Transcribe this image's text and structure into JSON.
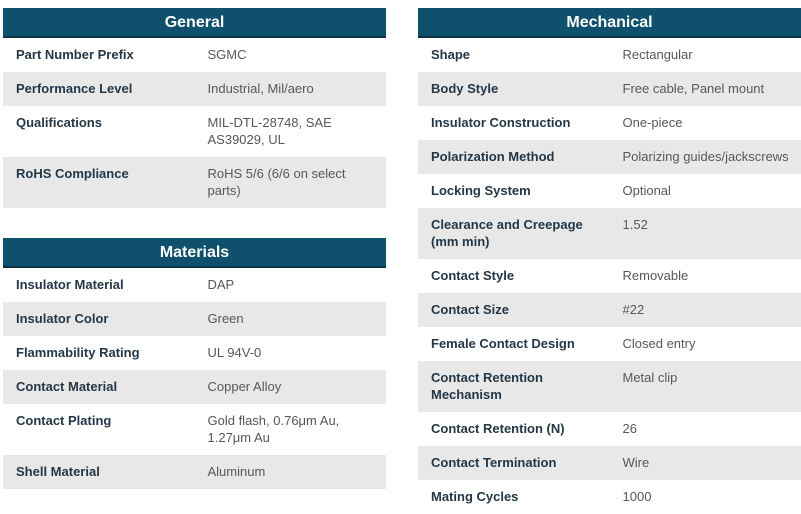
{
  "theme": {
    "header_bg": "#0f506d",
    "header_border": "#0c3144",
    "header_text": "#ffffff",
    "row_stripe": "#e8e8e8",
    "label_color": "#243746",
    "value_color": "#55585a"
  },
  "tables": [
    {
      "title": "General",
      "rows": [
        {
          "label": "Part Number Prefix",
          "value": "SGMC"
        },
        {
          "label": "Performance Level",
          "value": "Industrial, Mil/aero"
        },
        {
          "label": "Qualifications",
          "value": "MIL-DTL-28748, SAE AS39029, UL"
        },
        {
          "label": "RoHS Compliance",
          "value": "RoHS 5/6 (6/6 on select parts)"
        }
      ]
    },
    {
      "title": "Materials",
      "rows": [
        {
          "label": "Insulator Material",
          "value": "DAP"
        },
        {
          "label": "Insulator Color",
          "value": "Green"
        },
        {
          "label": "Flammability Rating",
          "value": "UL 94V-0"
        },
        {
          "label": "Contact Material",
          "value": "Copper Alloy"
        },
        {
          "label": "Contact Plating",
          "value": "Gold flash, 0.76μm Au, 1.27μm Au"
        },
        {
          "label": "Shell Material",
          "value": "Aluminum"
        }
      ]
    },
    {
      "title": "Mechanical",
      "rows": [
        {
          "label": "Shape",
          "value": "Rectangular"
        },
        {
          "label": "Body Style",
          "value": "Free cable, Panel mount"
        },
        {
          "label": "Insulator Construction",
          "value": "One-piece"
        },
        {
          "label": "Polarization Method",
          "value": "Polarizing guides/jackscrews"
        },
        {
          "label": "Locking System",
          "value": "Optional"
        },
        {
          "label": "Clearance and Creepage (mm min)",
          "value": "1.52"
        },
        {
          "label": "Contact Style",
          "value": "Removable"
        },
        {
          "label": "Contact Size",
          "value": "#22"
        },
        {
          "label": "Female Contact Design",
          "value": "Closed entry"
        },
        {
          "label": "Contact Retention Mechanism",
          "value": "Metal clip"
        },
        {
          "label": "Contact Retention (N)",
          "value": "26"
        },
        {
          "label": "Contact Termination",
          "value": "Wire"
        },
        {
          "label": "Mating Cycles",
          "value": "1000"
        }
      ]
    }
  ]
}
